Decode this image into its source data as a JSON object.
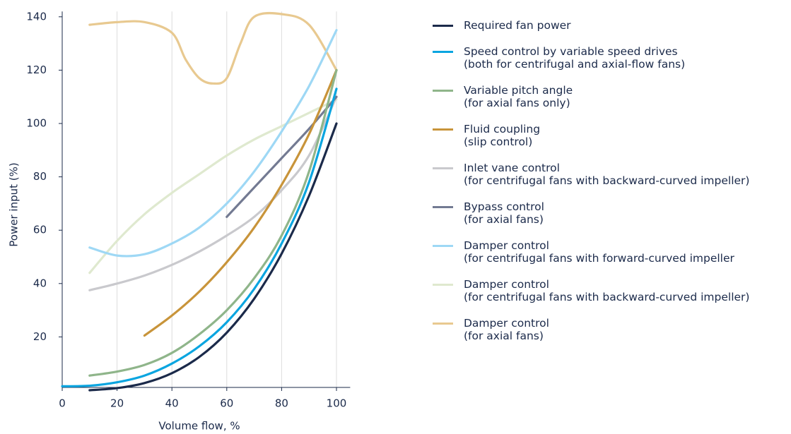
{
  "chart_data": {
    "type": "line",
    "xlabel": "Volume flow, %",
    "ylabel": "Power input (%)",
    "xlim": [
      0,
      105
    ],
    "ylim": [
      0,
      142
    ],
    "xticks": [
      0,
      20,
      40,
      60,
      80,
      100
    ],
    "yticks": [
      20,
      40,
      60,
      80,
      100,
      120,
      140
    ],
    "grid": "x",
    "legend": "right",
    "series": [
      {
        "name": "Required fan power",
        "color": "#1b2a4a",
        "x": [
          10,
          20,
          30,
          40,
          50,
          60,
          70,
          80,
          90,
          100
        ],
        "values": [
          0,
          0.8,
          2.7,
          6.4,
          12.5,
          21.6,
          34.3,
          51.2,
          72.9,
          100
        ]
      },
      {
        "name": "Speed control by variable speed drives\n(both for centrifugal and axial-flow fans)",
        "color": "#0aa5e0",
        "x": [
          0,
          10,
          20,
          30,
          40,
          50,
          60,
          70,
          80,
          90,
          100
        ],
        "values": [
          1.5,
          1.7,
          3,
          5.5,
          10,
          16.5,
          25.5,
          38,
          55,
          78,
          113
        ]
      },
      {
        "name": "Variable pitch angle\n(for axial fans only)",
        "color": "#8fb58a",
        "x": [
          10,
          20,
          30,
          40,
          50,
          60,
          70,
          80,
          90,
          100
        ],
        "values": [
          5.5,
          7,
          9.5,
          14,
          21,
          30,
          42,
          58,
          82,
          120
        ]
      },
      {
        "name": "Fluid coupling\n(slip control)",
        "color": "#c8943a",
        "x": [
          30,
          40,
          50,
          60,
          70,
          80,
          90,
          100
        ],
        "values": [
          20.5,
          28,
          37,
          48,
          61,
          77,
          96,
          120
        ]
      },
      {
        "name": "Inlet vane control\n(for centrifugal fans with backward-curved impeller)",
        "color": "#c9c9cd",
        "x": [
          10,
          20,
          30,
          40,
          50,
          60,
          70,
          80,
          90,
          100
        ],
        "values": [
          37.5,
          40,
          43,
          47,
          52,
          58,
          65,
          75,
          88,
          110
        ]
      },
      {
        "name": "Bypass control\n(for axial fans)",
        "color": "#737a92",
        "x": [
          60,
          70,
          80,
          90,
          100
        ],
        "values": [
          65,
          76,
          87,
          98,
          110
        ]
      },
      {
        "name": "Damper control\n(for centrifugal fans with forward-curved impeller",
        "color": "#9ed8f5",
        "x": [
          10,
          20,
          30,
          40,
          50,
          60,
          70,
          80,
          90,
          100
        ],
        "values": [
          53.5,
          50.5,
          51,
          55,
          61,
          70,
          82,
          97,
          114,
          135
        ]
      },
      {
        "name": "Damper control\n(for centrifugal fans with backward-curved impeller)",
        "color": "#dfe9cf",
        "x": [
          10,
          20,
          30,
          40,
          50,
          60,
          70,
          80,
          90,
          100
        ],
        "values": [
          44,
          56,
          66,
          74,
          81,
          88,
          94,
          99,
          104,
          109
        ]
      },
      {
        "name": "Damper control\n(for axial fans)",
        "color": "#e8c990",
        "x": [
          10,
          20,
          30,
          40,
          45,
          50,
          55,
          60,
          65,
          70,
          80,
          90,
          100
        ],
        "values": [
          137,
          138,
          138,
          134,
          124,
          117,
          115,
          117,
          130,
          140,
          141,
          137,
          120
        ]
      }
    ]
  }
}
